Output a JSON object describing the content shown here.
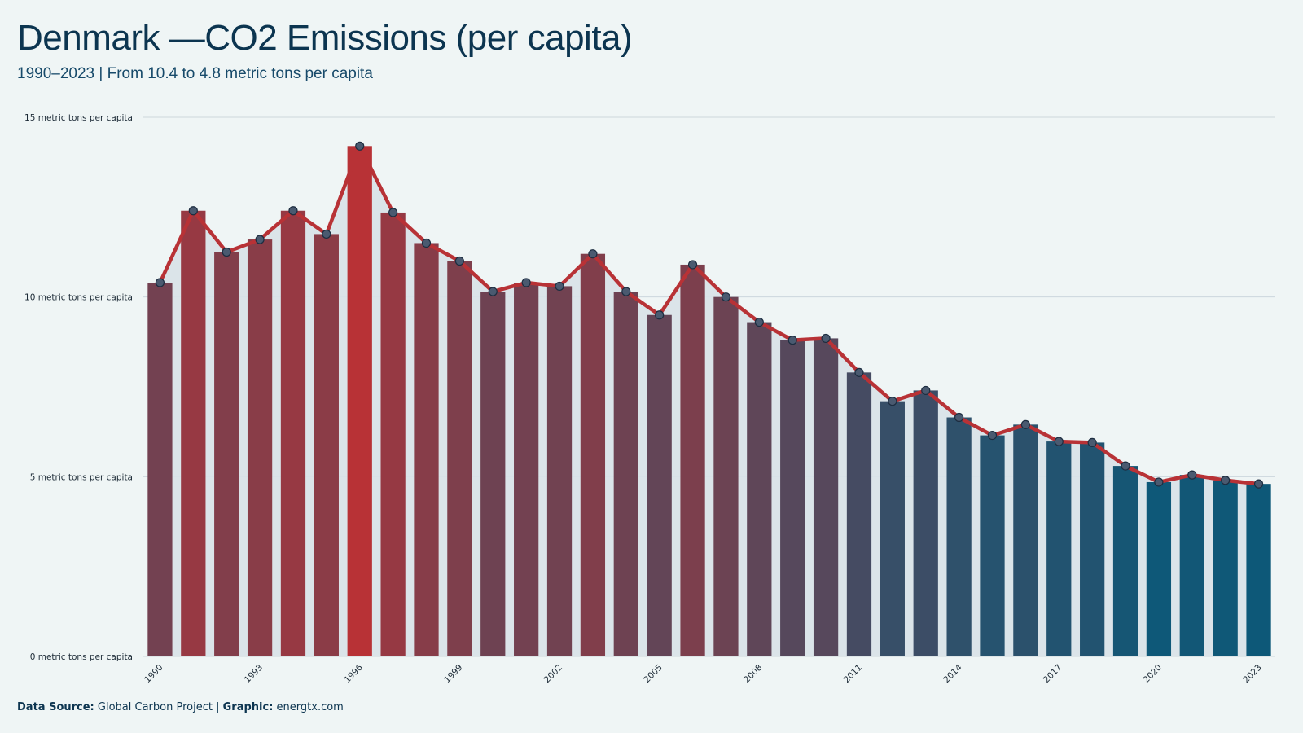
{
  "title": "Denmark —CO2 Emissions (per capita)",
  "subtitle": "1990–2023 | From 10.4 to 4.8 metric tons per capita",
  "footer": {
    "source_label": "Data Source:",
    "source_value": "Global Carbon Project",
    "separator": "|",
    "graphic_label": "Graphic:",
    "graphic_value": "energtx.com"
  },
  "colors": {
    "background": "#eff5f5",
    "high": "#b83236",
    "low": "#0d5878",
    "line": "#b83236",
    "area": "#d8e2e8",
    "marker_fill": "#4a5a70",
    "marker_stroke": "#1d2d40"
  },
  "chart_data": {
    "type": "bar",
    "title": "Denmark —CO2 Emissions (per capita)",
    "subtitle": "1990–2023 | From 10.4 to 4.8 metric tons per capita",
    "xlabel": "",
    "ylabel": "",
    "unit": "metric tons per capita",
    "ylim": [
      0,
      15
    ],
    "y_ticks": [
      {
        "value": 0,
        "label": "0 metric tons per capita"
      },
      {
        "value": 5,
        "label": "5 metric tons per capita"
      },
      {
        "value": 10,
        "label": "10 metric tons per capita"
      },
      {
        "value": 15,
        "label": "15 metric tons per capita"
      }
    ],
    "x_tick_labels": [
      "1990",
      "1993",
      "1996",
      "1999",
      "2002",
      "2005",
      "2008",
      "2011",
      "2014",
      "2017",
      "2020",
      "2023"
    ],
    "grid": true,
    "legend": "none",
    "overlay": "line with markers over bars, shaded area under line",
    "x": [
      1990,
      1991,
      1992,
      1993,
      1994,
      1995,
      1996,
      1997,
      1998,
      1999,
      2000,
      2001,
      2002,
      2003,
      2004,
      2005,
      2006,
      2007,
      2008,
      2009,
      2010,
      2011,
      2012,
      2013,
      2014,
      2015,
      2016,
      2017,
      2018,
      2019,
      2020,
      2021,
      2022,
      2023
    ],
    "values": [
      10.4,
      12.4,
      11.25,
      11.6,
      12.4,
      11.75,
      14.2,
      12.35,
      11.5,
      11.0,
      10.15,
      10.4,
      10.3,
      11.2,
      10.15,
      9.5,
      10.9,
      10.0,
      9.3,
      8.8,
      8.85,
      7.9,
      7.1,
      7.4,
      6.65,
      6.15,
      6.45,
      5.98,
      5.95,
      5.3,
      4.85,
      5.05,
      4.9,
      4.8
    ]
  }
}
